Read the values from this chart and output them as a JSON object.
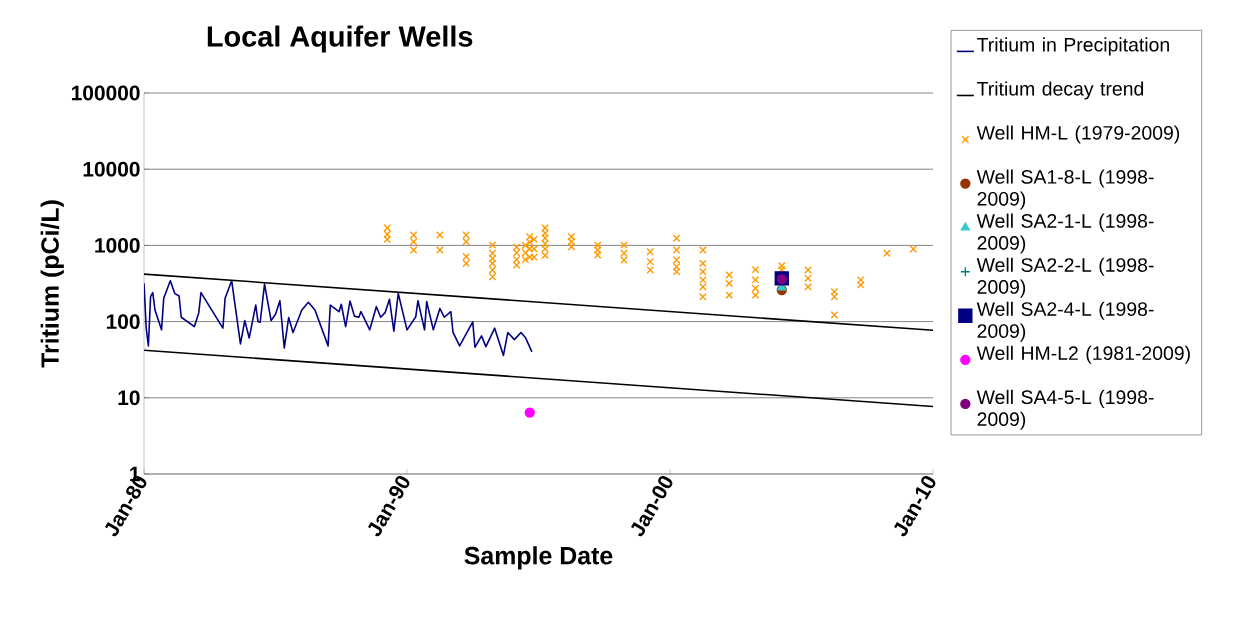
{
  "chart_data": {
    "type": "line",
    "title": "Local Aquifer Wells",
    "xlabel": "Sample Date",
    "ylabel": "Tritium (pCi/L)",
    "xlim": [
      "1980-01",
      "2010-01"
    ],
    "xticks": [
      {
        "value": "1980-01",
        "label": "Jan-80"
      },
      {
        "value": "1990-01",
        "label": "Jan-90"
      },
      {
        "value": "2000-01",
        "label": "Jan-00"
      },
      {
        "value": "2010-01",
        "label": "Jan-10"
      }
    ],
    "ylim": [
      1,
      100000
    ],
    "yticks": [
      1,
      10,
      100,
      1000,
      10000,
      100000
    ],
    "log": "y",
    "grid": "y",
    "legend": "right",
    "line_style": "solid",
    "series": [
      {
        "name": "Tritium in Precipitation",
        "type": "line",
        "color": "#000080",
        "x": [
          "1980-01",
          "1980-02",
          "1980-03",
          "1980-04",
          "1980-05",
          "1980-06",
          "1980-09",
          "1980-10",
          "1981-01",
          "1981-03",
          "1981-05",
          "1981-06",
          "1981-12",
          "1982-02",
          "1982-03",
          "1983-01",
          "1983-02",
          "1983-05",
          "1983-09",
          "1983-11",
          "1984-01",
          "1984-04",
          "1984-05",
          "1984-06",
          "1984-08",
          "1984-11",
          "1985-01",
          "1985-03",
          "1985-05",
          "1985-07",
          "1985-09",
          "1986-01",
          "1986-04",
          "1986-07",
          "1987-01",
          "1987-02",
          "1987-06",
          "1987-07",
          "1987-09",
          "1987-11",
          "1988-01",
          "1988-03",
          "1988-04",
          "1988-08",
          "1988-11",
          "1989-01",
          "1989-03",
          "1989-05",
          "1989-07",
          "1989-09",
          "1990-01",
          "1990-05",
          "1990-06",
          "1990-09",
          "1990-10",
          "1991-01",
          "1991-04",
          "1991-06",
          "1991-09",
          "1991-10",
          "1992-01",
          "1992-07",
          "1992-08",
          "1992-11",
          "1993-01",
          "1993-05",
          "1993-09",
          "1993-11",
          "1994-02",
          "1994-05",
          "1994-07",
          "1994-10"
        ],
        "values": [
          318,
          82,
          48,
          212,
          240,
          142,
          78,
          202,
          344,
          235,
          217,
          114,
          86,
          131,
          240,
          82,
          202,
          344,
          51,
          103,
          61,
          165,
          100,
          98,
          311,
          103,
          125,
          188,
          45,
          113,
          72,
          142,
          179,
          142,
          48,
          165,
          135,
          169,
          86,
          186,
          118,
          114,
          135,
          78,
          157,
          114,
          131,
          196,
          75,
          235,
          78,
          116,
          188,
          78,
          183,
          78,
          149,
          114,
          135,
          72,
          48,
          99,
          46,
          65,
          47,
          82,
          36,
          72,
          58,
          72,
          62,
          40
        ]
      },
      {
        "name": "Tritium decay trend",
        "type": "line",
        "color": "#000000",
        "x": [
          "1980-01",
          "2010-01"
        ],
        "values": [
          420,
          77
        ]
      },
      {
        "type": "line",
        "color": "#000000",
        "x": [
          "1980-01",
          "2010-01"
        ],
        "values": [
          42,
          7.7
        ]
      },
      {
        "name": "Well HM-L (1979-2009)",
        "type": "scatter",
        "marker": "cross",
        "color": "#ff9900",
        "x": [
          "1989-04",
          "1989-04",
          "1989-04",
          "1990-04",
          "1990-04",
          "1990-04",
          "1991-04",
          "1991-04",
          "1992-04",
          "1992-04",
          "1992-04",
          "1992-04",
          "1993-04",
          "1993-04",
          "1993-04",
          "1993-04",
          "1993-04",
          "1993-04",
          "1994-03",
          "1994-03",
          "1994-03",
          "1994-03",
          "1994-07",
          "1994-07",
          "1994-07",
          "1994-09",
          "1994-09",
          "1994-09",
          "1994-09",
          "1994-11",
          "1994-11",
          "1994-11",
          "1995-04",
          "1995-04",
          "1995-04",
          "1995-04",
          "1995-04",
          "1995-04",
          "1996-04",
          "1996-04",
          "1996-04",
          "1997-04",
          "1997-04",
          "1997-04",
          "1998-04",
          "1998-04",
          "1998-04",
          "1999-04",
          "1999-04",
          "1999-04",
          "2000-04",
          "2000-04",
          "2000-04",
          "2000-04",
          "2000-04",
          "2001-04",
          "2001-04",
          "2001-04",
          "2001-04",
          "2001-04",
          "2001-04",
          "2002-04",
          "2002-04",
          "2002-04",
          "2003-04",
          "2003-04",
          "2003-04",
          "2003-04",
          "2004-04",
          "2004-04",
          "2005-04",
          "2005-04",
          "2005-04",
          "2006-04",
          "2006-04",
          "2006-04",
          "2007-04",
          "2007-04",
          "2008-04",
          "2009-04"
        ],
        "values": [
          1700,
          1400,
          1200,
          1370,
          1120,
          870,
          1370,
          870,
          1370,
          1120,
          711,
          582,
          1010,
          788,
          677,
          582,
          476,
          388,
          950,
          800,
          650,
          550,
          1000,
          800,
          650,
          1300,
          1100,
          900,
          700,
          1200,
          900,
          700,
          1700,
          1450,
          1250,
          1050,
          900,
          740,
          1300,
          1120,
          960,
          1010,
          870,
          748,
          1010,
          788,
          643,
          826,
          611,
          476,
          1240,
          870,
          643,
          525,
          452,
          870,
          582,
          452,
          352,
          285,
          212,
          409,
          318,
          223,
          480,
          352,
          273,
          223,
          540,
          480,
          476,
          370,
          285,
          247,
          212,
          122,
          352,
          303,
          788,
          897
        ]
      },
      {
        "name": "Well SA1-8-L (1998-2009)",
        "type": "scatter",
        "marker": "circle",
        "color": "#993300",
        "x": [
          "2004-04"
        ],
        "values": [
          260
        ]
      },
      {
        "name": "Well SA2-1-L (1998-2009)",
        "type": "scatter",
        "marker": "triangle",
        "color": "#33cccc",
        "x": [
          "2004-04"
        ],
        "values": [
          280
        ]
      },
      {
        "name": "Well SA2-2-L (1998-2009)",
        "type": "scatter",
        "marker": "plus",
        "color": "#008080",
        "values": [
          null
        ]
      },
      {
        "name": "Well SA2-4-L (1998-2009)",
        "type": "scatter",
        "marker": "square",
        "color": "#000080",
        "x": [
          "2004-04"
        ],
        "values": [
          370
        ]
      },
      {
        "name": "Well HM-L2 (1981-2009)",
        "type": "scatter",
        "marker": "circle",
        "color": "#ff00ff",
        "x": [
          "1994-09"
        ],
        "values": [
          6.4
        ]
      },
      {
        "name": "Well SA4-5-L (1998-2009)",
        "type": "scatter",
        "marker": "circle",
        "color": "#800080",
        "x": [
          "2004-04"
        ],
        "values": [
          360
        ]
      }
    ]
  }
}
